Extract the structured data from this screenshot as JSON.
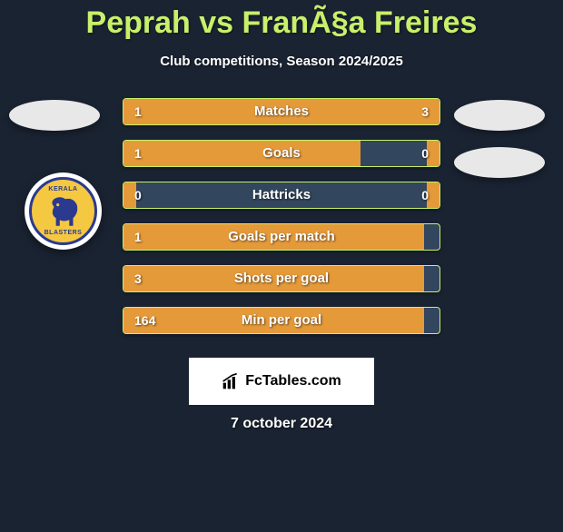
{
  "title": "Peprah vs FranÃ§a Freires",
  "subtitle": "Club competitions, Season 2024/2025",
  "club_badge": {
    "top_text": "KERALA",
    "bottom_text": "BLASTERS",
    "ring_color": "#2b3a8f",
    "fill_color": "#f5c842"
  },
  "bars": {
    "track_bg": "#32465e",
    "border_color": "#c8f06a",
    "fill_color": "#e59a3a",
    "label_color": "#ffffff",
    "rows": [
      {
        "label": "Matches",
        "left_val": "1",
        "right_val": "3",
        "left_pct": 25,
        "right_pct": 75
      },
      {
        "label": "Goals",
        "left_val": "1",
        "right_val": "0",
        "left_pct": 75,
        "right_pct": 4
      },
      {
        "label": "Hattricks",
        "left_val": "0",
        "right_val": "0",
        "left_pct": 4,
        "right_pct": 4
      },
      {
        "label": "Goals per match",
        "left_val": "1",
        "right_val": "",
        "left_pct": 95,
        "right_pct": 0
      },
      {
        "label": "Shots per goal",
        "left_val": "3",
        "right_val": "",
        "left_pct": 95,
        "right_pct": 0
      },
      {
        "label": "Min per goal",
        "left_val": "164",
        "right_val": "",
        "left_pct": 95,
        "right_pct": 0
      }
    ]
  },
  "footer_brand": "FcTables.com",
  "date": "7 october 2024",
  "colors": {
    "page_bg": "#1a2332",
    "title_color": "#c8f06a",
    "badge_ellipse": "#e8e8e8"
  }
}
